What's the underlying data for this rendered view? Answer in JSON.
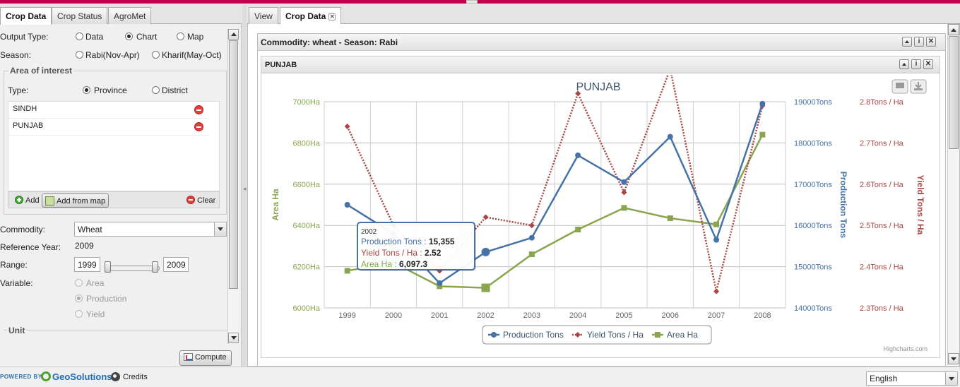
{
  "left_tabs": [
    "Crop Data",
    "Crop Status",
    "AgroMet"
  ],
  "output_type": {
    "label": "Output Type:",
    "options": [
      "Data",
      "Chart",
      "Map"
    ],
    "selected": "Chart"
  },
  "season": {
    "label": "Season:",
    "options": [
      "Rabi(Nov-Apr)",
      "Kharif(May-Oct)"
    ],
    "selected": ""
  },
  "area_of_interest": {
    "title": "Area of interest",
    "type_label": "Type:",
    "type_options": [
      "Province",
      "District"
    ],
    "type_selected": "Province",
    "items": [
      "SINDH",
      "PUNJAB"
    ],
    "add_label": "Add",
    "add_from_map_label": "Add from map",
    "clear_label": "Clear"
  },
  "commodity": {
    "label": "Commodity:",
    "value": "Wheat"
  },
  "reference_year": {
    "label": "Reference Year:",
    "value": "2009"
  },
  "range": {
    "label": "Range:",
    "from": "1999",
    "to": "2009"
  },
  "variable": {
    "label": "Variable:",
    "options": [
      "Area",
      "Production",
      "Yield"
    ],
    "selected": "Production"
  },
  "unit": {
    "label": "Unit"
  },
  "compute_label": "Compute",
  "right_tabs": [
    "View",
    "Crop Data"
  ],
  "portlet_title": "Commodity: wheat - Season: Rabi",
  "inner_title": "PUNJAB",
  "chart_data": {
    "type": "line",
    "title": "PUNJAB",
    "categories": [
      "1999",
      "2000",
      "2001",
      "2002",
      "2003",
      "2004",
      "2005",
      "2006",
      "2007",
      "2008"
    ],
    "axes": {
      "area": {
        "label": "Area Ha",
        "ticks": [
          "6000Ha",
          "6200Ha",
          "6400Ha",
          "6600Ha",
          "6800Ha",
          "7000Ha"
        ],
        "min": 6000,
        "max": 7000,
        "color": "#89A54E"
      },
      "production": {
        "label": "Production Tons",
        "ticks": [
          "14000Tons",
          "15000Tons",
          "16000Tons",
          "17000Tons",
          "18000Tons",
          "19000Tons"
        ],
        "min": 14000,
        "max": 19000,
        "color": "#4572A7"
      },
      "yield": {
        "label": "Yield Tons / Ha",
        "ticks": [
          "2.3Tons / Ha",
          "2.4Tons / Ha",
          "2.5Tons / Ha",
          "2.6Tons / Ha",
          "2.7Tons / Ha",
          "2.8Tons / Ha"
        ],
        "min": 2.3,
        "max": 2.8,
        "color": "#AA4643"
      }
    },
    "series": [
      {
        "name": "Production Tons",
        "axis": "production",
        "color": "#4572A7",
        "values": [
          16500,
          15800,
          14600,
          15355,
          15700,
          17700,
          17050,
          18150,
          15650,
          18950
        ]
      },
      {
        "name": "Yield Tons / Ha",
        "axis": "yield",
        "color": "#AA4643",
        "values": [
          2.74,
          2.5,
          2.39,
          2.52,
          2.5,
          2.82,
          2.58,
          2.88,
          2.34,
          2.79
        ]
      },
      {
        "name": "Area Ha",
        "axis": "area",
        "color": "#89A54E",
        "values": [
          6180,
          6220,
          6105,
          6097.3,
          6260,
          6380,
          6485,
          6435,
          6405,
          6840
        ]
      }
    ],
    "tooltip": {
      "category": "2002",
      "lines": [
        {
          "label": "Production Tons",
          "value": "15,355",
          "color": "#4572A7"
        },
        {
          "label": "Yield Tons / Ha",
          "value": "2.52",
          "color": "#AA4643"
        },
        {
          "label": "Area Ha",
          "value": "6,097.3",
          "color": "#89A54E"
        }
      ]
    },
    "credits": "Highcharts.com",
    "grid": true,
    "legend_position": "bottom"
  },
  "footer": {
    "powered_by": "POWERED BY",
    "brand": "GeoSolutions",
    "credits": "Credits",
    "language": "English"
  }
}
